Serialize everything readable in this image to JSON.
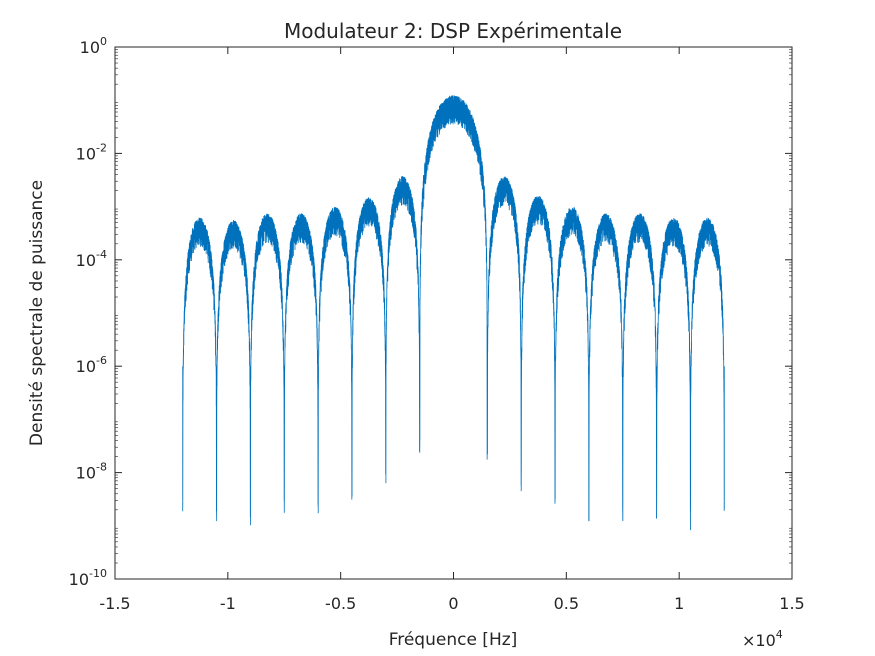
{
  "chart_data": {
    "type": "line",
    "title": "Modulateur 2: DSP Expérimentale",
    "xlabel": "Fréquence [Hz]",
    "ylabel": "Densité spectrale de puissance",
    "x_exponent_label": "×10",
    "x_exponent_power": "4",
    "x_scale_factor": 10000,
    "xlim": [
      -15000,
      15000
    ],
    "ylim": [
      1e-10,
      1
    ],
    "yscale": "log",
    "grid": false,
    "x_ticks": [
      -15000,
      -10000,
      -5000,
      0,
      5000,
      10000,
      15000
    ],
    "x_tick_labels": [
      "-1.5",
      "-1",
      "-0.5",
      "0",
      "0.5",
      "1",
      "1.5"
    ],
    "y_ticks": [
      1e-10,
      1e-08,
      1e-06,
      0.0001,
      0.01,
      1
    ],
    "y_tick_labels": [
      {
        "base": "10",
        "exp": "-10"
      },
      {
        "base": "10",
        "exp": "-8"
      },
      {
        "base": "10",
        "exp": "-6"
      },
      {
        "base": "10",
        "exp": "-4"
      },
      {
        "base": "10",
        "exp": "-2"
      },
      {
        "base": "10",
        "exp": "0"
      }
    ],
    "series": [
      {
        "color": "#0072bd",
        "x_range": [
          -12000,
          12000
        ],
        "null_spacing_hz": 1500,
        "lobes": [
          {
            "center": -11250,
            "peak": 0.0005
          },
          {
            "center": -9750,
            "peak": 0.00045
          },
          {
            "center": -8250,
            "peak": 0.0006
          },
          {
            "center": -6750,
            "peak": 0.0006
          },
          {
            "center": -5250,
            "peak": 0.0008
          },
          {
            "center": -3750,
            "peak": 0.0012
          },
          {
            "center": -2250,
            "peak": 0.003
          },
          {
            "center": 0,
            "peak": 0.1
          },
          {
            "center": 2250,
            "peak": 0.003
          },
          {
            "center": 3750,
            "peak": 0.0013
          },
          {
            "center": 5250,
            "peak": 0.0008
          },
          {
            "center": 6750,
            "peak": 0.0006
          },
          {
            "center": 8250,
            "peak": 0.0006
          },
          {
            "center": 9750,
            "peak": 0.0005
          },
          {
            "center": 11250,
            "peak": 0.0005
          }
        ],
        "nulls": [
          {
            "x": -12000,
            "y": 3e-09
          },
          {
            "x": -10500,
            "y": 2e-09
          },
          {
            "x": -9000,
            "y": 2.5e-09
          },
          {
            "x": -7500,
            "y": 3e-09
          },
          {
            "x": -6000,
            "y": 3e-09
          },
          {
            "x": -4500,
            "y": 6e-09
          },
          {
            "x": -3000,
            "y": 1.2e-08
          },
          {
            "x": -1500,
            "y": 5e-08
          },
          {
            "x": 1500,
            "y": 5e-08
          },
          {
            "x": 3000,
            "y": 1.2e-08
          },
          {
            "x": 4500,
            "y": 6e-09
          },
          {
            "x": 6000,
            "y": 3e-09
          },
          {
            "x": 7500,
            "y": 3e-09
          },
          {
            "x": 9000,
            "y": 2.5e-09
          },
          {
            "x": 10500,
            "y": 2e-09
          },
          {
            "x": 12000,
            "y": 3e-09
          }
        ]
      }
    ]
  }
}
